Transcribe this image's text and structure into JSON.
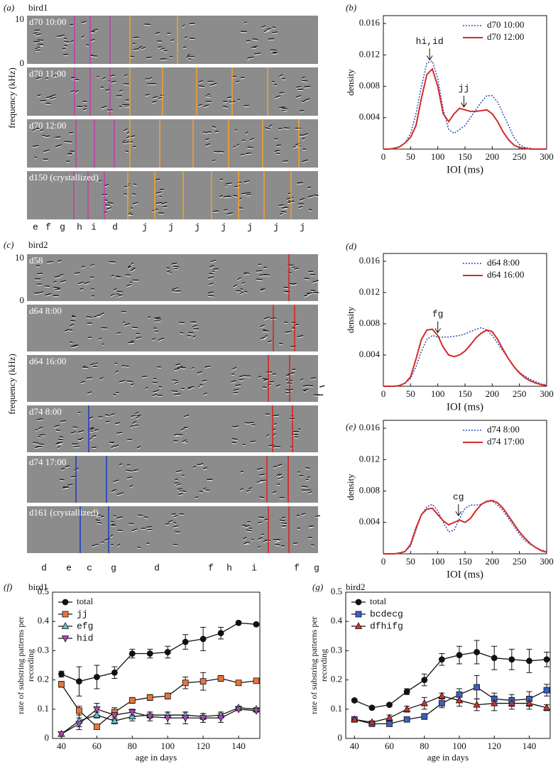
{
  "spectrograms": [
    {
      "panel_label": "(a)",
      "title": "bird1",
      "ylabel": "frequency (kHz)",
      "ylim": [
        0,
        10
      ],
      "yticks": [
        0,
        10
      ],
      "rows": [
        "d70 10:00",
        "d70 11:00",
        "d70 12:00",
        "d150 (crystallized)"
      ],
      "syllables": [
        "e",
        "f",
        "g",
        "h",
        "i",
        "d",
        "j",
        "j",
        "j",
        "j",
        "j",
        "j",
        "j"
      ]
    },
    {
      "panel_label": "(c)",
      "title": "bird2",
      "ylabel": "frequency (kHz)",
      "ylim": [
        0,
        10
      ],
      "yticks": [
        0,
        10
      ],
      "rows": [
        "d58",
        "d64 8:00",
        "d64 16:00",
        "d74 8:00",
        "d74 17:00",
        "d161 (crystallized)"
      ],
      "syllables": [
        "d",
        "e",
        "c",
        "g",
        "d",
        "f",
        "h",
        "i",
        "f",
        "g"
      ]
    }
  ],
  "chart_data": [
    {
      "type": "line",
      "panel_label": "(b)",
      "xlabel": "IOI (ms)",
      "ylabel": "density",
      "xlim": [
        0,
        300
      ],
      "ylim": [
        0,
        0.017
      ],
      "xticks": [
        0,
        50,
        100,
        150,
        200,
        250,
        300
      ],
      "yticks": [
        0.004,
        0.008,
        0.012,
        0.016
      ],
      "legend": "upper right",
      "x": [
        0,
        10,
        20,
        30,
        40,
        50,
        60,
        70,
        80,
        90,
        100,
        110,
        120,
        130,
        140,
        150,
        160,
        170,
        180,
        190,
        200,
        210,
        220,
        230,
        240,
        250,
        260,
        270,
        280,
        290,
        300
      ],
      "series": [
        {
          "name": "d70 10:00",
          "color": "#2b4fb5",
          "linestyle": "dotted",
          "values": [
            0,
            0,
            0.0001,
            0.0003,
            0.0008,
            0.002,
            0.0045,
            0.008,
            0.011,
            0.0112,
            0.009,
            0.005,
            0.0025,
            0.002,
            0.0025,
            0.003,
            0.004,
            0.005,
            0.006,
            0.0068,
            0.0068,
            0.006,
            0.0045,
            0.003,
            0.0015,
            0.0006,
            0.0002,
            0.0001,
            0,
            0,
            0
          ]
        },
        {
          "name": "d70 12:00",
          "color": "#d42a2a",
          "linestyle": "solid",
          "values": [
            0,
            0,
            0.0001,
            0.0003,
            0.0008,
            0.0015,
            0.003,
            0.0065,
            0.0095,
            0.0102,
            0.008,
            0.0045,
            0.0035,
            0.0045,
            0.0052,
            0.005,
            0.0048,
            0.0048,
            0.0049,
            0.005,
            0.0045,
            0.0035,
            0.0022,
            0.0012,
            0.0005,
            0.0002,
            0.0001,
            0,
            0,
            0,
            0
          ]
        }
      ],
      "annotations": [
        {
          "text": "hi,id",
          "x": 85
        },
        {
          "text": "jj",
          "x": 148
        }
      ]
    },
    {
      "type": "line",
      "panel_label": "(d)",
      "xlabel": "IOI (ms)",
      "ylabel": "density",
      "xlim": [
        0,
        300
      ],
      "ylim": [
        0,
        0.017
      ],
      "xticks": [
        0,
        50,
        100,
        150,
        200,
        250,
        300
      ],
      "yticks": [
        0.004,
        0.008,
        0.012,
        0.016
      ],
      "legend": "upper right",
      "x": [
        0,
        10,
        20,
        30,
        40,
        50,
        60,
        70,
        80,
        90,
        100,
        110,
        120,
        130,
        140,
        150,
        160,
        170,
        180,
        190,
        200,
        210,
        220,
        230,
        240,
        250,
        260,
        270,
        280,
        290,
        300
      ],
      "series": [
        {
          "name": "d64 8:00",
          "color": "#2b4fb5",
          "linestyle": "dotted",
          "values": [
            0,
            0,
            0,
            0.0001,
            0.0004,
            0.001,
            0.0025,
            0.0045,
            0.006,
            0.0065,
            0.0063,
            0.0063,
            0.0063,
            0.0064,
            0.0065,
            0.0067,
            0.007,
            0.0073,
            0.0075,
            0.0072,
            0.0065,
            0.0055,
            0.0045,
            0.0035,
            0.0025,
            0.0018,
            0.0013,
            0.0009,
            0.0006,
            0.0003,
            0.0002
          ]
        },
        {
          "name": "d64 16:00",
          "color": "#d42a2a",
          "linestyle": "solid",
          "values": [
            0,
            0,
            0,
            0.0001,
            0.0004,
            0.0012,
            0.0035,
            0.006,
            0.0072,
            0.0073,
            0.0065,
            0.005,
            0.004,
            0.0038,
            0.004,
            0.0045,
            0.0053,
            0.0062,
            0.0068,
            0.0072,
            0.007,
            0.006,
            0.0047,
            0.0035,
            0.0025,
            0.0017,
            0.0011,
            0.0007,
            0.0004,
            0.0002,
            0.0001
          ]
        }
      ],
      "annotations": [
        {
          "text": "fg",
          "x": 100
        }
      ]
    },
    {
      "type": "line",
      "panel_label": "(e)",
      "xlabel": "IOI (ms)",
      "ylabel": "density",
      "xlim": [
        0,
        300
      ],
      "ylim": [
        0,
        0.017
      ],
      "xticks": [
        0,
        50,
        100,
        150,
        200,
        250,
        300
      ],
      "yticks": [
        0.004,
        0.008,
        0.012,
        0.016
      ],
      "legend": "upper right",
      "x": [
        0,
        10,
        20,
        30,
        40,
        50,
        60,
        70,
        80,
        90,
        100,
        110,
        120,
        130,
        140,
        150,
        160,
        170,
        180,
        190,
        200,
        210,
        220,
        230,
        240,
        250,
        260,
        270,
        280,
        290,
        300
      ],
      "series": [
        {
          "name": "d74 8:00",
          "color": "#2b4fb5",
          "linestyle": "dotted",
          "values": [
            0,
            0,
            0,
            0.0001,
            0.0003,
            0.001,
            0.003,
            0.005,
            0.006,
            0.0063,
            0.0055,
            0.004,
            0.0028,
            0.003,
            0.0045,
            0.0058,
            0.0062,
            0.0062,
            0.0063,
            0.0066,
            0.0067,
            0.0062,
            0.0055,
            0.0045,
            0.0035,
            0.0025,
            0.0017,
            0.0012,
            0.0008,
            0.0005,
            0.0003
          ]
        },
        {
          "name": "d74 17:00",
          "color": "#d42a2a",
          "linestyle": "solid",
          "values": [
            0,
            0,
            0,
            0.0001,
            0.0003,
            0.0012,
            0.0033,
            0.005,
            0.0057,
            0.0058,
            0.005,
            0.0042,
            0.0037,
            0.004,
            0.0043,
            0.004,
            0.0045,
            0.0055,
            0.0063,
            0.0067,
            0.0068,
            0.0065,
            0.0058,
            0.0048,
            0.0038,
            0.0028,
            0.002,
            0.0013,
            0.0008,
            0.0004,
            0.0002
          ]
        }
      ],
      "annotations": [
        {
          "text": "cg",
          "x": 138
        }
      ]
    },
    {
      "type": "errorbar",
      "panel_label": "(f)",
      "title": "bird1",
      "xlabel": "age in days",
      "ylabel": [
        "rate of substring patterns per",
        "recording"
      ],
      "xlim": [
        35,
        152
      ],
      "ylim": [
        0,
        0.5
      ],
      "xticks": [
        40,
        60,
        80,
        100,
        120,
        140
      ],
      "yticks": [
        0,
        0.1,
        0.2,
        0.3,
        0.4,
        0.5
      ],
      "legend": "upper left",
      "x": [
        40,
        50,
        60,
        70,
        80,
        90,
        100,
        110,
        120,
        130,
        140,
        150
      ],
      "series": [
        {
          "name": "total",
          "color": "#111111",
          "marker": "o",
          "values": [
            0.22,
            0.195,
            0.21,
            0.225,
            0.29,
            0.29,
            0.295,
            0.33,
            0.34,
            0.36,
            0.395,
            0.39
          ],
          "errors": [
            0.01,
            0.05,
            0.04,
            0.02,
            0.015,
            0.015,
            0.02,
            0.025,
            0.04,
            0.02,
            0.005,
            0.005
          ]
        },
        {
          "name": "jj",
          "color": "#e8743b",
          "marker": "s",
          "values": [
            0.185,
            0.095,
            0.04,
            0.09,
            0.13,
            0.14,
            0.145,
            0.19,
            0.195,
            0.205,
            0.19,
            0.197
          ],
          "errors": [
            0.01,
            0.015,
            0.005,
            0.015,
            0.01,
            0.01,
            0.01,
            0.02,
            0.03,
            0.01,
            0.005,
            0.005
          ]
        },
        {
          "name": "efg",
          "color": "#5cc6d0",
          "marker": "^",
          "values": [
            0.015,
            0.06,
            0.08,
            0.06,
            0.075,
            0.08,
            0.08,
            0.08,
            0.075,
            0.08,
            0.105,
            0.1
          ],
          "errors": [
            0.005,
            0.02,
            0.01,
            0.01,
            0.015,
            0.01,
            0.01,
            0.01,
            0.01,
            0.01,
            0.005,
            0.005
          ]
        },
        {
          "name": "hid",
          "color": "#b048b5",
          "marker": "v",
          "values": [
            0.015,
            0.05,
            0.1,
            0.08,
            0.09,
            0.075,
            0.07,
            0.07,
            0.07,
            0.07,
            0.1,
            0.095
          ],
          "errors": [
            0.005,
            0.02,
            0.02,
            0.015,
            0.01,
            0.015,
            0.02,
            0.02,
            0.015,
            0.015,
            0.005,
            0.005
          ]
        }
      ]
    },
    {
      "type": "errorbar",
      "panel_label": "(g)",
      "title": "bird2",
      "xlabel": "age in days",
      "ylabel": [
        "rate of substring patterns per",
        "recording"
      ],
      "xlim": [
        35,
        152
      ],
      "ylim": [
        0,
        0.5
      ],
      "xticks": [
        40,
        60,
        80,
        100,
        120,
        140
      ],
      "yticks": [
        0,
        0.1,
        0.2,
        0.3,
        0.4,
        0.5
      ],
      "legend": "upper left",
      "x": [
        40,
        50,
        60,
        70,
        80,
        90,
        100,
        110,
        120,
        130,
        140,
        150
      ],
      "series": [
        {
          "name": "total",
          "color": "#111111",
          "marker": "o",
          "values": [
            0.13,
            0.105,
            0.115,
            0.16,
            0.2,
            0.27,
            0.285,
            0.295,
            0.275,
            0.27,
            0.265,
            0.27
          ],
          "errors": [
            0.005,
            0.005,
            0.005,
            0.01,
            0.02,
            0.02,
            0.03,
            0.04,
            0.04,
            0.035,
            0.04,
            0.025
          ]
        },
        {
          "name": "bcdecg",
          "color": "#3b5fc0",
          "marker": "s",
          "values": [
            0.065,
            0.05,
            0.05,
            0.065,
            0.075,
            0.12,
            0.15,
            0.175,
            0.135,
            0.13,
            0.135,
            0.165
          ],
          "errors": [
            0.005,
            0.005,
            0.005,
            0.005,
            0.01,
            0.015,
            0.02,
            0.04,
            0.02,
            0.02,
            0.025,
            0.02
          ]
        },
        {
          "name": "dfhifg",
          "color": "#d03030",
          "marker": "^",
          "values": [
            0.065,
            0.055,
            0.07,
            0.1,
            0.12,
            0.145,
            0.13,
            0.115,
            0.12,
            0.12,
            0.12,
            0.105
          ],
          "errors": [
            0.005,
            0.005,
            0.01,
            0.01,
            0.02,
            0.01,
            0.02,
            0.02,
            0.025,
            0.02,
            0.02,
            0.01
          ]
        }
      ]
    }
  ]
}
